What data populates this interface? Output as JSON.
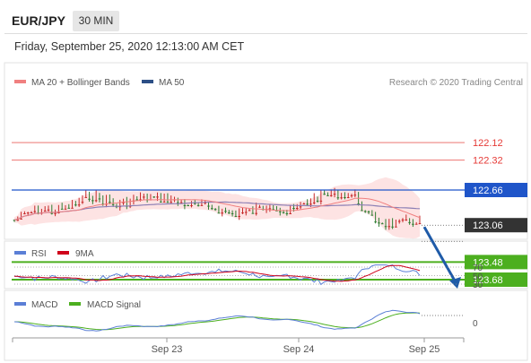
{
  "header": {
    "symbol": "EUR/JPY",
    "timeframe": "30 MIN",
    "datetime": "Friday, September 25, 2020 12:13:00 AM CET"
  },
  "legend": {
    "ma20": "MA 20 + Bollinger Bands",
    "ma50": "MA 50",
    "credit": "Research © 2020 Trading Central"
  },
  "colors": {
    "candle_up": "#2e7d32",
    "candle_down": "#c62828",
    "ma20": "#f08080",
    "bollinger_fill": "#fde3e3",
    "ma50": "#8c7fb5",
    "resistance": "#4caf1f",
    "support_blue": "#1f55c9",
    "support_red": "#e53935",
    "price_label": "#333333",
    "arrow": "#1f5ba8",
    "rsi": "#5b7fd6",
    "rsi_ma": "#d0021b",
    "macd": "#5b7fd6",
    "macd_signal": "#4caf1f"
  },
  "chart_data": [
    {
      "type": "line",
      "title": "",
      "ylim": [
        121.85,
        124.0
      ],
      "x_ticks": [
        "Sep 23",
        "Sep 24",
        "Sep 25"
      ],
      "bars": 120,
      "anchors": [
        [
          0,
          123.0
        ],
        [
          6,
          122.88
        ],
        [
          12,
          122.9
        ],
        [
          18,
          122.82
        ],
        [
          22,
          122.72
        ],
        [
          30,
          122.83
        ],
        [
          38,
          122.74
        ],
        [
          45,
          122.76
        ],
        [
          52,
          122.83
        ],
        [
          58,
          122.85
        ],
        [
          64,
          122.93
        ],
        [
          70,
          122.9
        ],
        [
          75,
          122.82
        ],
        [
          80,
          122.92
        ],
        [
          86,
          122.8
        ],
        [
          90,
          122.72
        ],
        [
          95,
          122.7
        ],
        [
          100,
          122.72
        ],
        [
          103,
          122.92
        ],
        [
          106,
          123.0
        ],
        [
          110,
          123.05
        ],
        [
          115,
          123.03
        ],
        [
          119,
          123.0
        ]
      ],
      "levels": [
        {
          "value": 123.68,
          "label": "123.68",
          "kind": "resistance"
        },
        {
          "value": 123.48,
          "label": "123.48",
          "kind": "resistance"
        },
        {
          "value": 123.06,
          "label": "123.06",
          "kind": "last"
        },
        {
          "value": 122.66,
          "label": "122.66",
          "kind": "support"
        },
        {
          "value": 122.32,
          "label": "122.32",
          "kind": "support-minor"
        },
        {
          "value": 122.12,
          "label": "122.12",
          "kind": "support-minor"
        }
      ],
      "forecast_arrow": {
        "from": 123.08,
        "to": 123.65
      }
    },
    {
      "type": "line",
      "title": "",
      "series": [
        {
          "name": "RSI"
        },
        {
          "name": "9MA"
        }
      ],
      "ylim": [
        20,
        80
      ],
      "y_ticks": [
        70,
        50,
        30
      ],
      "mean": 50
    },
    {
      "type": "line",
      "title": "",
      "series": [
        {
          "name": "MACD"
        },
        {
          "name": "MACD Signal"
        }
      ],
      "y_ticks": [
        0
      ]
    }
  ]
}
